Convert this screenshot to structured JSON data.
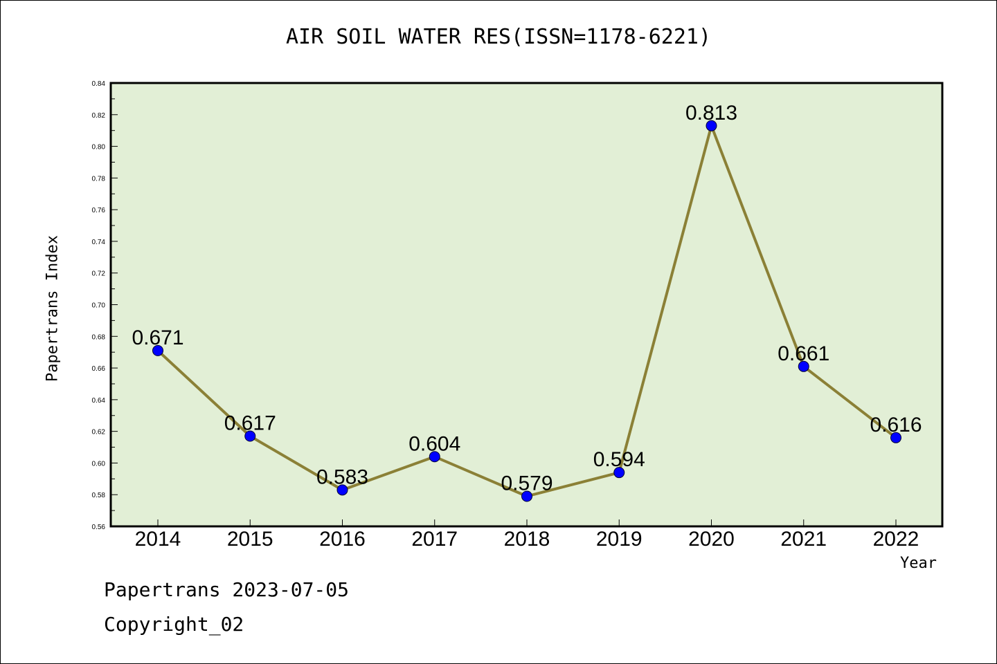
{
  "chart_data": {
    "type": "line",
    "title": "AIR SOIL WATER RES(ISSN=1178-6221)",
    "xlabel": "Year",
    "ylabel": "Papertrans Index",
    "categories": [
      "2014",
      "2015",
      "2016",
      "2017",
      "2018",
      "2019",
      "2020",
      "2021",
      "2022"
    ],
    "series": [
      {
        "values": [
          0.671,
          0.617,
          0.583,
          0.604,
          0.579,
          0.594,
          0.813,
          0.661,
          0.616
        ],
        "labels": [
          "0.671",
          "0.617",
          "0.583",
          "0.604",
          "0.579",
          "0.594",
          "0.813",
          "0.661",
          "0.616"
        ]
      }
    ],
    "ylim": [
      0.56,
      0.84
    ],
    "yticks": [
      "0.56",
      "0.58",
      "0.60",
      "0.62",
      "0.64",
      "0.66",
      "0.68",
      "0.70",
      "0.72",
      "0.74",
      "0.76",
      "0.78",
      "0.80",
      "0.82",
      "0.84"
    ],
    "grid": false,
    "colors": {
      "plot_background": "#e2efd6",
      "line": "#8b8036",
      "marker": "#0000ff"
    }
  },
  "footer": {
    "line1": "Papertrans 2023-07-05",
    "line2": "Copyright_02"
  }
}
